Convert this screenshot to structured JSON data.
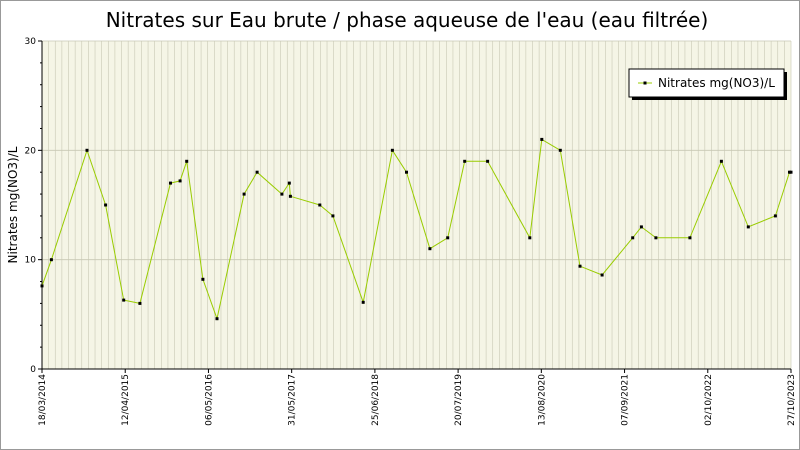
{
  "chart_data": {
    "type": "line",
    "title": "Nitrates sur Eau brute / phase aqueuse de l'eau (eau filtrée)",
    "ylabel": "Nitrates mg(NO3)/L",
    "xlabel": "",
    "ylim": [
      0,
      30
    ],
    "y_ticks": [
      "0",
      "10",
      "20",
      "30"
    ],
    "x_tick_labels": [
      "18/03/2014",
      "12/04/2015",
      "06/05/2016",
      "31/05/2017",
      "25/06/2018",
      "20/07/2019",
      "13/08/2020",
      "07/09/2021",
      "02/10/2022",
      "27/10/2023"
    ],
    "xlim": [
      "2014-03-18",
      "2023-10-27"
    ],
    "grid": true,
    "legend_position": "top-right",
    "colors": {
      "line": "#99cc00",
      "marker": "#000000",
      "plot_background": "#f5f5e6",
      "grid": "#c8c8b4"
    },
    "series": [
      {
        "name": "Nitrates mg(NO3)/L",
        "points": [
          {
            "x": "2014-03-18",
            "y": 7.6
          },
          {
            "x": "2014-05-01",
            "y": 10.0
          },
          {
            "x": "2014-10-15",
            "y": 20.0
          },
          {
            "x": "2015-01-10",
            "y": 15.0
          },
          {
            "x": "2015-04-05",
            "y": 6.3
          },
          {
            "x": "2015-06-20",
            "y": 6.0
          },
          {
            "x": "2015-11-10",
            "y": 17.0
          },
          {
            "x": "2015-12-25",
            "y": 17.2
          },
          {
            "x": "2016-01-25",
            "y": 19.0
          },
          {
            "x": "2016-04-10",
            "y": 8.2
          },
          {
            "x": "2016-06-15",
            "y": 4.6
          },
          {
            "x": "2016-10-20",
            "y": 16.0
          },
          {
            "x": "2016-12-20",
            "y": 18.0
          },
          {
            "x": "2017-04-15",
            "y": 16.0
          },
          {
            "x": "2017-05-20",
            "y": 17.0
          },
          {
            "x": "2017-05-25",
            "y": 15.8
          },
          {
            "x": "2017-10-10",
            "y": 15.0
          },
          {
            "x": "2017-12-10",
            "y": 14.0
          },
          {
            "x": "2018-05-01",
            "y": 6.1
          },
          {
            "x": "2018-09-15",
            "y": 20.0
          },
          {
            "x": "2018-11-20",
            "y": 18.0
          },
          {
            "x": "2019-03-10",
            "y": 11.0
          },
          {
            "x": "2019-06-01",
            "y": 12.0
          },
          {
            "x": "2019-08-20",
            "y": 19.0
          },
          {
            "x": "2019-12-05",
            "y": 19.0
          },
          {
            "x": "2020-06-20",
            "y": 12.0
          },
          {
            "x": "2020-08-15",
            "y": 21.0
          },
          {
            "x": "2020-11-10",
            "y": 20.0
          },
          {
            "x": "2021-02-10",
            "y": 9.4
          },
          {
            "x": "2021-05-25",
            "y": 8.6
          },
          {
            "x": "2021-10-15",
            "y": 12.0
          },
          {
            "x": "2021-11-25",
            "y": 13.0
          },
          {
            "x": "2022-02-01",
            "y": 12.0
          },
          {
            "x": "2022-07-10",
            "y": 12.0
          },
          {
            "x": "2022-12-05",
            "y": 19.0
          },
          {
            "x": "2023-04-10",
            "y": 13.0
          },
          {
            "x": "2023-08-15",
            "y": 14.0
          },
          {
            "x": "2023-10-20",
            "y": 18.0
          },
          {
            "x": "2023-10-27",
            "y": 18.0
          }
        ]
      }
    ]
  }
}
